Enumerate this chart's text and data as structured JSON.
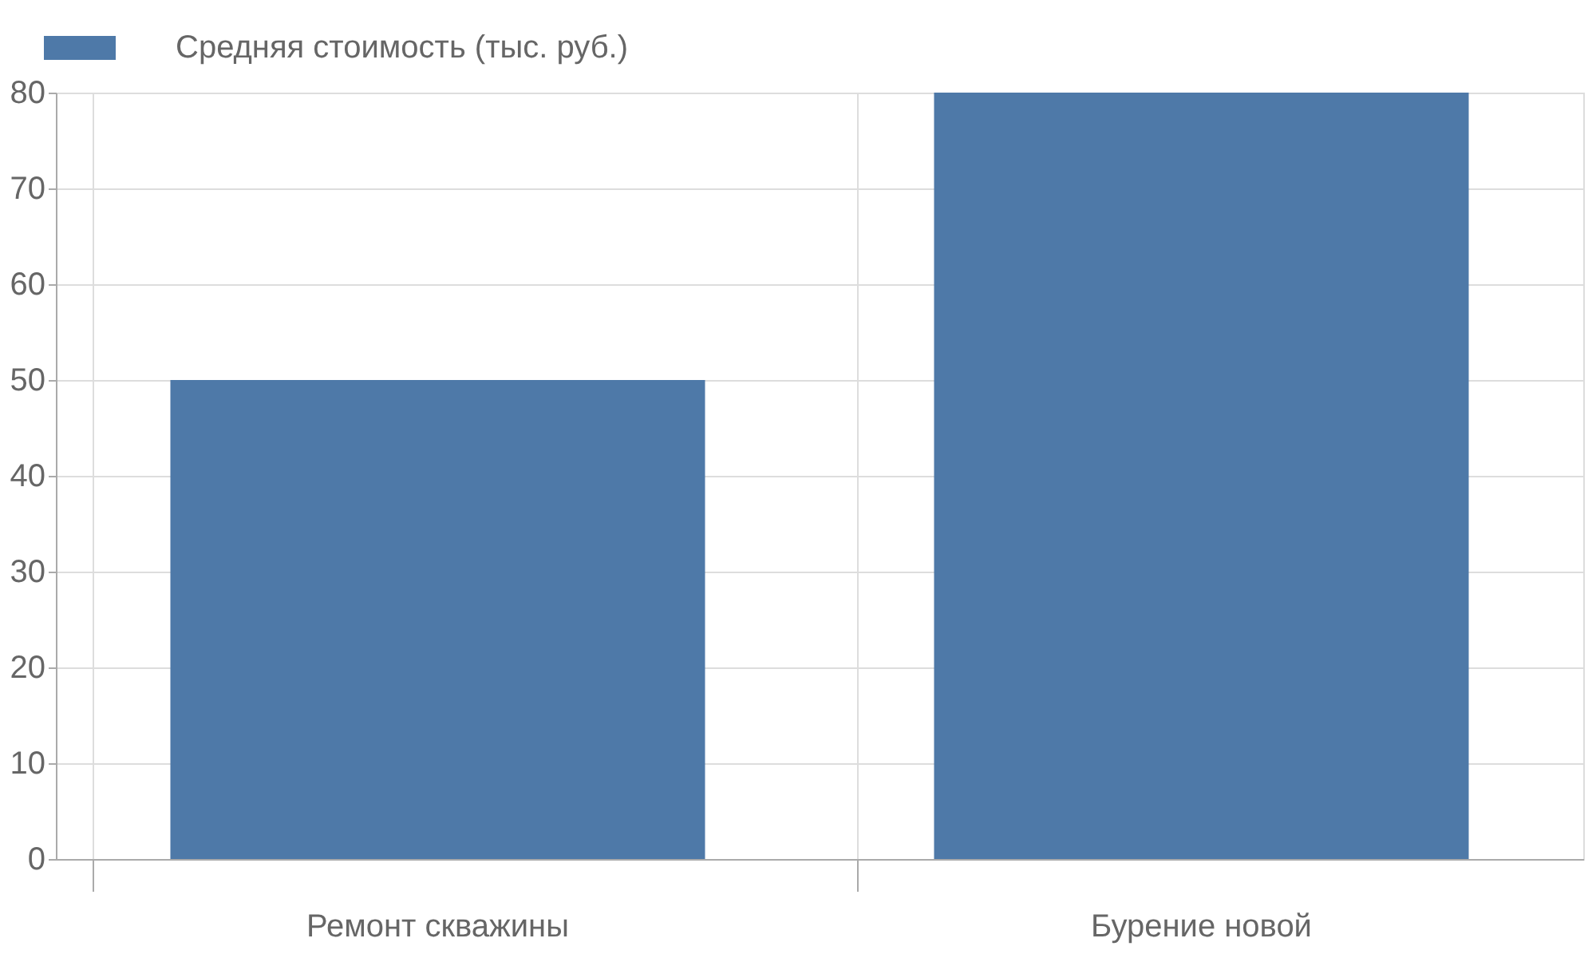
{
  "chart_data": {
    "type": "bar",
    "categories": [
      "Ремонт скважины",
      "Бурение новой"
    ],
    "series": [
      {
        "name": "Средняя стоимость (тыс. руб.)",
        "color": "#4e79a8",
        "values": [
          50,
          80
        ]
      }
    ],
    "ylim": [
      0,
      80
    ],
    "yticks": [
      0,
      10,
      20,
      30,
      40,
      50,
      60,
      70,
      80
    ],
    "grid": true,
    "legend": "top"
  }
}
